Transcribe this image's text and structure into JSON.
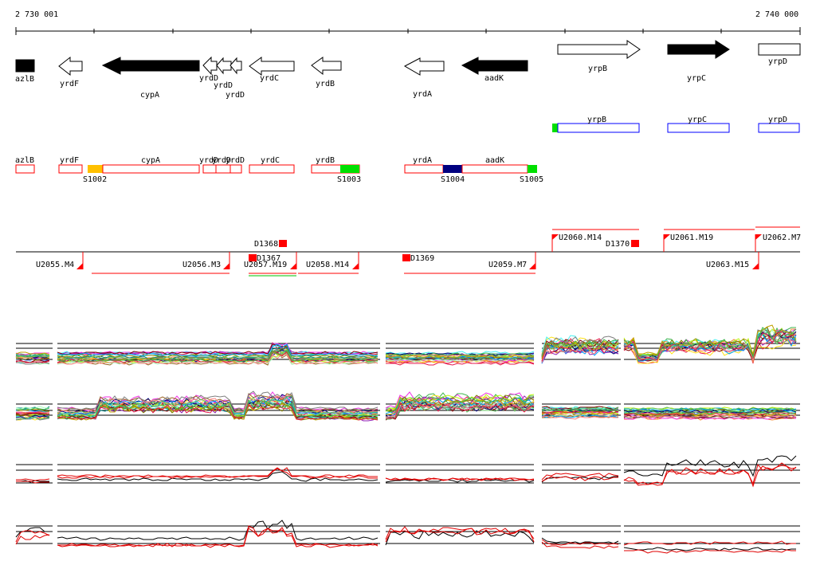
{
  "ruler": {
    "start_label": "2 730 001",
    "end_label": "2 740 000"
  },
  "genes": [
    {
      "name": "azlB",
      "dir": "left",
      "fill": "black"
    },
    {
      "name": "yrdF",
      "dir": "left",
      "fill": "white"
    },
    {
      "name": "cypA",
      "dir": "left",
      "fill": "black"
    },
    {
      "name": "yrdD",
      "dir": "left",
      "fill": "white"
    },
    {
      "name": "yrdD",
      "dir": "left",
      "fill": "white"
    },
    {
      "name": "yrdD",
      "dir": "left",
      "fill": "white"
    },
    {
      "name": "yrdC",
      "dir": "left",
      "fill": "white"
    },
    {
      "name": "yrdB",
      "dir": "left",
      "fill": "white"
    },
    {
      "name": "yrdA",
      "dir": "left",
      "fill": "white"
    },
    {
      "name": "aadK",
      "dir": "left",
      "fill": "black"
    },
    {
      "name": "yrpB",
      "dir": "right",
      "fill": "white"
    },
    {
      "name": "yrpC",
      "dir": "right",
      "fill": "black"
    },
    {
      "name": "yrpD",
      "dir": "right",
      "fill": "white"
    }
  ],
  "plus_boxes": [
    "yrpB",
    "yrpC",
    "yrpD"
  ],
  "minus_boxes": [
    "azlB",
    "yrdF",
    "cypA",
    "yrdD",
    "yrdD",
    "yrdD",
    "yrdC",
    "yrdB",
    "yrdA",
    "aadK"
  ],
  "sites": [
    "S1002",
    "S1003",
    "S1004",
    "S1005"
  ],
  "site_colors": {
    "S1002": "#ffc000",
    "S1003": "#00e000",
    "S1004": "#000080",
    "S1005": "#00e000",
    "yrpB": "#00e000"
  },
  "segments_top": [
    "D1368",
    "U2060.M14",
    "D1370",
    "U2061.M19",
    "U2062.M7"
  ],
  "segments_bottom": [
    "U2055.M4",
    "U2056.M3",
    "D1367",
    "U2057.M19",
    "U2058.M14",
    "D1369",
    "U2059.M7",
    "U2063.M15"
  ],
  "colors": {
    "minus_outline": "#ff0000",
    "plus_outline": "#0000ff",
    "segment": "#ff0000"
  }
}
